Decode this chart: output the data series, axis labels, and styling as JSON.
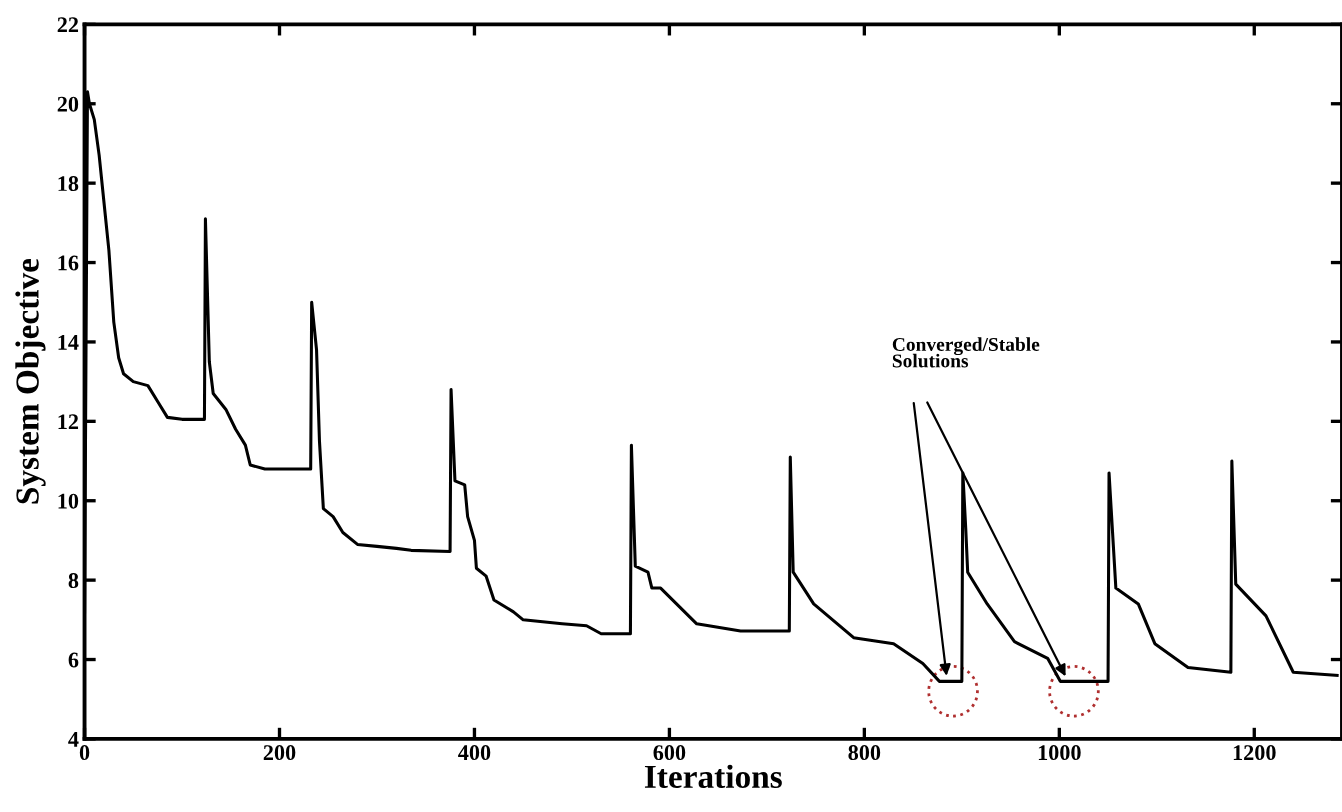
{
  "chart_data": {
    "type": "line",
    "xlabel": "Iterations",
    "ylabel": "System Objective",
    "xlim": [
      0,
      1290
    ],
    "ylim": [
      4,
      22
    ],
    "xticks": [
      0,
      200,
      400,
      600,
      800,
      1000,
      1200
    ],
    "yticks": [
      4,
      6,
      8,
      10,
      12,
      14,
      16,
      18,
      20,
      22
    ],
    "grid": false,
    "legend": false,
    "marker": "none",
    "line_style": "solid",
    "series": [
      {
        "color": "#000000",
        "x": [
          0,
          3,
          5,
          10,
          15,
          20,
          25,
          30,
          35,
          40,
          50,
          65,
          75,
          85,
          100,
          123,
          124,
          128,
          132,
          145,
          155,
          165,
          170,
          185,
          232,
          233,
          238,
          241,
          245,
          255,
          265,
          280,
          300,
          320,
          335,
          375,
          376,
          380,
          390,
          393,
          400,
          402,
          412,
          420,
          440,
          450,
          470,
          490,
          515,
          530,
          560,
          561,
          565,
          578,
          582,
          591,
          628,
          673,
          723,
          724,
          727,
          748,
          789,
          830,
          860,
          877,
          900,
          901,
          904,
          906,
          926,
          954,
          988,
          1001,
          1050,
          1051,
          1058,
          1081,
          1098,
          1132,
          1176,
          1177,
          1181,
          1212,
          1240,
          1285
        ],
        "values": [
          7.2,
          20.3,
          20.0,
          19.6,
          18.7,
          17.5,
          16.3,
          14.5,
          13.6,
          13.2,
          13.0,
          12.9,
          12.5,
          12.1,
          12.05,
          12.05,
          17.1,
          13.5,
          12.7,
          12.3,
          11.8,
          11.4,
          10.9,
          10.8,
          10.8,
          15.0,
          13.8,
          11.5,
          9.8,
          9.6,
          9.2,
          8.9,
          8.85,
          8.8,
          8.75,
          8.72,
          12.8,
          10.5,
          10.4,
          9.6,
          9.0,
          8.3,
          8.1,
          7.5,
          7.2,
          7.0,
          6.95,
          6.9,
          6.85,
          6.65,
          6.65,
          11.4,
          8.35,
          8.2,
          7.8,
          7.8,
          6.9,
          6.72,
          6.72,
          11.1,
          8.2,
          7.4,
          6.55,
          6.4,
          5.9,
          5.45,
          5.45,
          10.7,
          9.3,
          8.2,
          7.4,
          6.45,
          6.03,
          5.45,
          5.45,
          10.7,
          7.8,
          7.4,
          6.4,
          5.8,
          5.68,
          11.0,
          7.9,
          7.1,
          5.68,
          5.6
        ]
      }
    ],
    "annotations": [
      "Converged/Stable\nSolutions"
    ]
  }
}
